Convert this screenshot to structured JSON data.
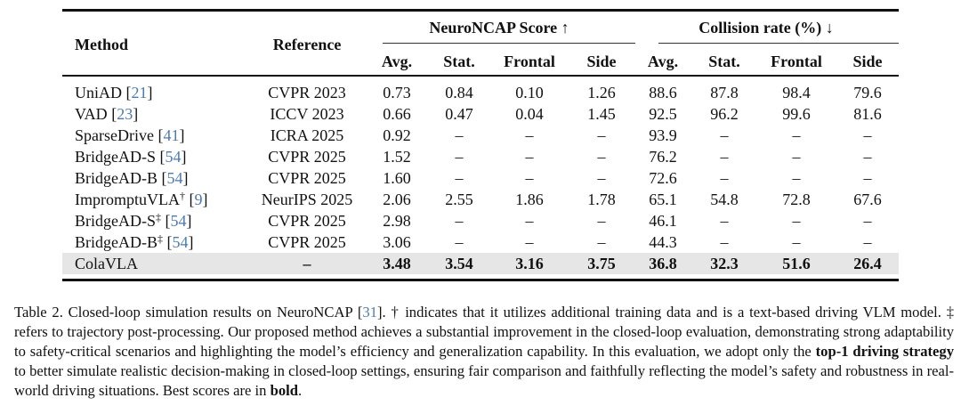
{
  "table": {
    "header": {
      "method": "Method",
      "reference": "Reference",
      "group1": "NeuroNCAP Score ↑",
      "group2": "Collision rate (%) ↓",
      "subcols": [
        "Avg.",
        "Stat.",
        "Frontal",
        "Side",
        "Avg.",
        "Stat.",
        "Frontal",
        "Side"
      ]
    },
    "rows": [
      {
        "method": "UniAD",
        "sup": "",
        "cite": "21",
        "reference": "CVPR 2023",
        "values": [
          "0.73",
          "0.84",
          "0.10",
          "1.26",
          "88.6",
          "87.8",
          "98.4",
          "79.6"
        ]
      },
      {
        "method": "VAD",
        "sup": "",
        "cite": "23",
        "reference": "ICCV 2023",
        "values": [
          "0.66",
          "0.47",
          "0.04",
          "1.45",
          "92.5",
          "96.2",
          "99.6",
          "81.6"
        ]
      },
      {
        "method": "SparseDrive",
        "sup": "",
        "cite": "41",
        "reference": "ICRA 2025",
        "values": [
          "0.92",
          "–",
          "–",
          "–",
          "93.9",
          "–",
          "–",
          "–"
        ]
      },
      {
        "method": "BridgeAD-S",
        "sup": "",
        "cite": "54",
        "reference": "CVPR 2025",
        "values": [
          "1.52",
          "–",
          "–",
          "–",
          "76.2",
          "–",
          "–",
          "–"
        ]
      },
      {
        "method": "BridgeAD-B",
        "sup": "",
        "cite": "54",
        "reference": "CVPR 2025",
        "values": [
          "1.60",
          "–",
          "–",
          "–",
          "72.6",
          "–",
          "–",
          "–"
        ]
      },
      {
        "method": "ImpromptuVLA",
        "sup": "†",
        "cite": "9",
        "reference": "NeurIPS 2025",
        "values": [
          "2.06",
          "2.55",
          "1.86",
          "1.78",
          "65.1",
          "54.8",
          "72.8",
          "67.6"
        ]
      },
      {
        "method": "BridgeAD-S",
        "sup": "‡",
        "cite": "54",
        "reference": "CVPR 2025",
        "values": [
          "2.98",
          "–",
          "–",
          "–",
          "46.1",
          "–",
          "–",
          "–"
        ]
      },
      {
        "method": "BridgeAD-B",
        "sup": "‡",
        "cite": "54",
        "reference": "CVPR 2025",
        "values": [
          "3.06",
          "–",
          "–",
          "–",
          "44.3",
          "–",
          "–",
          "–"
        ]
      },
      {
        "method": "ColaVLA",
        "sup": "",
        "cite": "",
        "reference": "–",
        "values": [
          "3.48",
          "3.54",
          "3.16",
          "3.75",
          "36.8",
          "32.3",
          "51.6",
          "26.4"
        ],
        "highlight": true
      }
    ]
  },
  "caption": {
    "p1": "Table 2. Closed-loop simulation results on NeuroNCAP [",
    "cite": "31",
    "p2": "]. † indicates that it utilizes additional training data and is a text-based driving VLM model. ‡ refers to trajectory post-processing. Our proposed method achieves a substantial improvement in the closed-loop evaluation, demonstrating strong adaptability to safety-critical scenarios and highlighting the model’s efficiency and generalization capability. In this evaluation, we adopt only the ",
    "bold1": "top-1 driving strategy",
    "p3": " to better simulate realistic decision-making in closed-loop settings, ensuring fair comparison and faithfully reflecting the model’s safety and robustness in real-world driving situations. Best scores are in ",
    "bold2": "bold",
    "p4": "."
  },
  "colors": {
    "cite": "#4a7ab5",
    "highlight": "#e6e6e6"
  }
}
